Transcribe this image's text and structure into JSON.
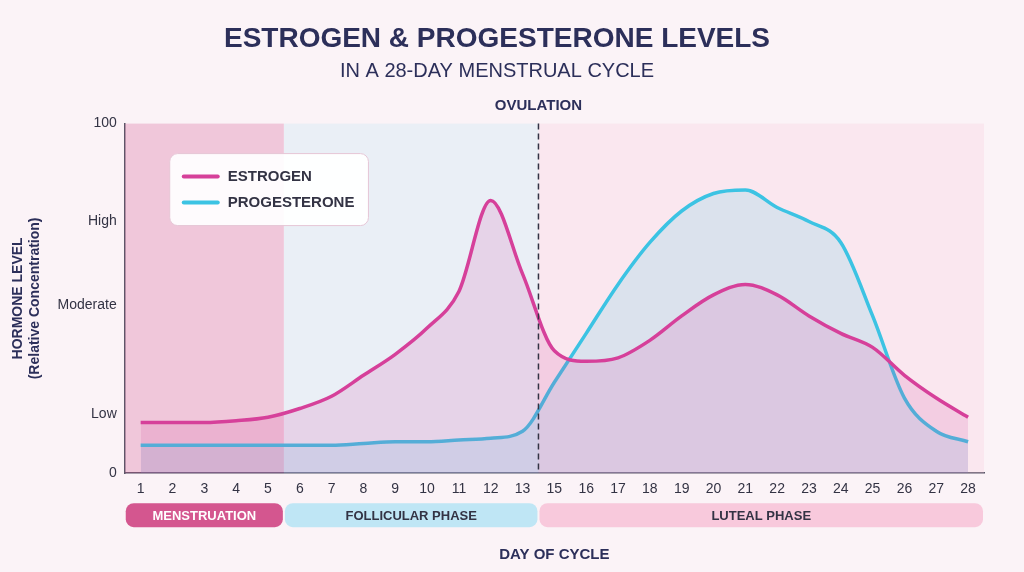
{
  "chart_data": {
    "type": "line",
    "title": "ESTROGEN & PROGESTERONE LEVELS",
    "subtitle": "IN A 28-DAY MENSTRUAL CYCLE",
    "x_label": "DAY OF CYCLE",
    "y_label": [
      "HORMONE LEVEL",
      "(Relative Concentration)"
    ],
    "categories": [
      "1",
      "2",
      "3",
      "4",
      "5",
      "6",
      "7",
      "8",
      "9",
      "10",
      "11",
      "12",
      "13",
      "15",
      "16",
      "17",
      "18",
      "19",
      "20",
      "21",
      "22",
      "23",
      "24",
      "25",
      "26",
      "27",
      "28"
    ],
    "series": [
      {
        "name": "ESTROGEN",
        "color": "#d6409a",
        "values": [
          14.5,
          14.5,
          14.5,
          15,
          16,
          18.5,
          22,
          28,
          34,
          41.5,
          52,
          78,
          57,
          35,
          32,
          33,
          38,
          45,
          51,
          54,
          51,
          45,
          40,
          36,
          28,
          21.5,
          16
        ]
      },
      {
        "name": "PROGESTERONE",
        "color": "#3cc3e3",
        "values": [
          8,
          8,
          8,
          8,
          8,
          8,
          8,
          8.5,
          9,
          9,
          9.5,
          10,
          12,
          26,
          40,
          54,
          66,
          75,
          80,
          81,
          76,
          72,
          66,
          45,
          21.5,
          12,
          9
        ]
      }
    ],
    "ylim": [
      0,
      100
    ],
    "yticks": [
      0,
      {
        "value": 17,
        "label": "Low"
      },
      {
        "value": 48,
        "label": "Moderate"
      },
      {
        "value": 72,
        "label": "High"
      },
      100
    ],
    "grid": false,
    "legend": "upper left",
    "annotations": [
      {
        "text": "OVULATION",
        "after": "13"
      }
    ],
    "phases": [
      {
        "label": "MENSTRUATION",
        "from": "1",
        "to": "5",
        "color": "#d4568f"
      },
      {
        "label": "FOLLICULAR PHASE",
        "from": "6",
        "to": "13",
        "color": "#bfe6f5"
      },
      {
        "label": "LUTEAL PHASE",
        "from": "15",
        "to": "28",
        "color": "#f8c9dc"
      }
    ]
  }
}
